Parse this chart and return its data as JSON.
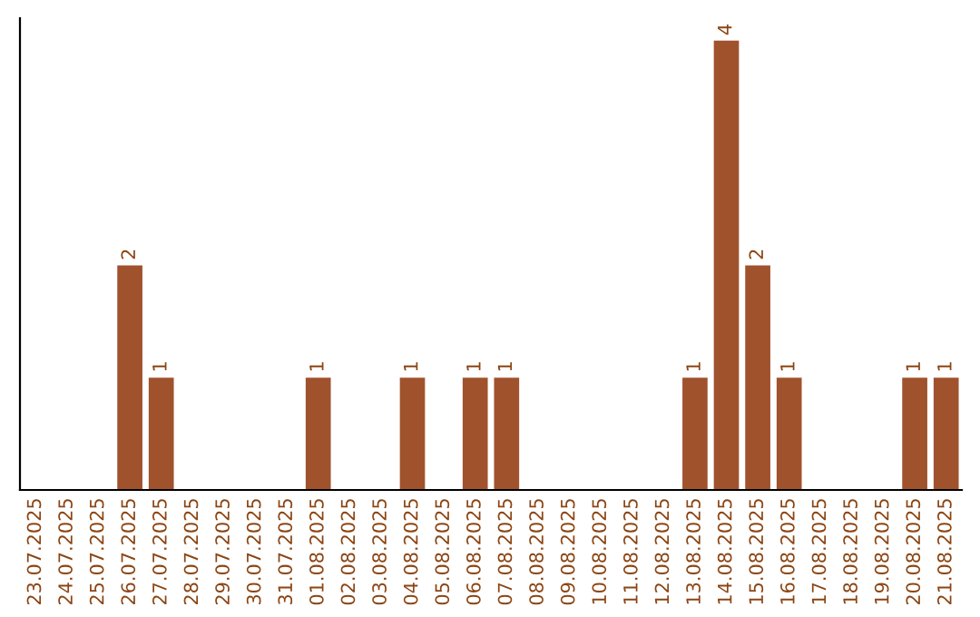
{
  "chart_data": {
    "type": "bar",
    "categories": [
      "23.07.2025",
      "24.07.2025",
      "25.07.2025",
      "26.07.2025",
      "27.07.2025",
      "28.07.2025",
      "29.07.2025",
      "30.07.2025",
      "31.07.2025",
      "01.08.2025",
      "02.08.2025",
      "03.08.2025",
      "04.08.2025",
      "05.08.2025",
      "06.08.2025",
      "07.08.2025",
      "08.08.2025",
      "09.08.2025",
      "10.08.2025",
      "11.08.2025",
      "12.08.2025",
      "13.08.2025",
      "14.08.2025",
      "15.08.2025",
      "16.08.2025",
      "17.08.2025",
      "18.08.2025",
      "19.08.2025",
      "20.08.2025",
      "21.08.2025"
    ],
    "values": [
      0,
      0,
      0,
      2,
      1,
      0,
      0,
      0,
      0,
      1,
      0,
      0,
      1,
      0,
      1,
      1,
      0,
      0,
      0,
      0,
      0,
      1,
      4,
      2,
      1,
      0,
      0,
      0,
      1,
      1
    ],
    "value_labels": [
      null,
      null,
      null,
      "2",
      "1",
      null,
      null,
      null,
      null,
      "1",
      null,
      null,
      "1",
      null,
      "1",
      "1",
      null,
      null,
      null,
      null,
      null,
      "1",
      "4",
      "2",
      "1",
      null,
      null,
      null,
      "1",
      "1"
    ],
    "color": "#a0522d",
    "ylim": [
      0,
      4.2
    ],
    "tick_labels": "x",
    "grid": false
  }
}
